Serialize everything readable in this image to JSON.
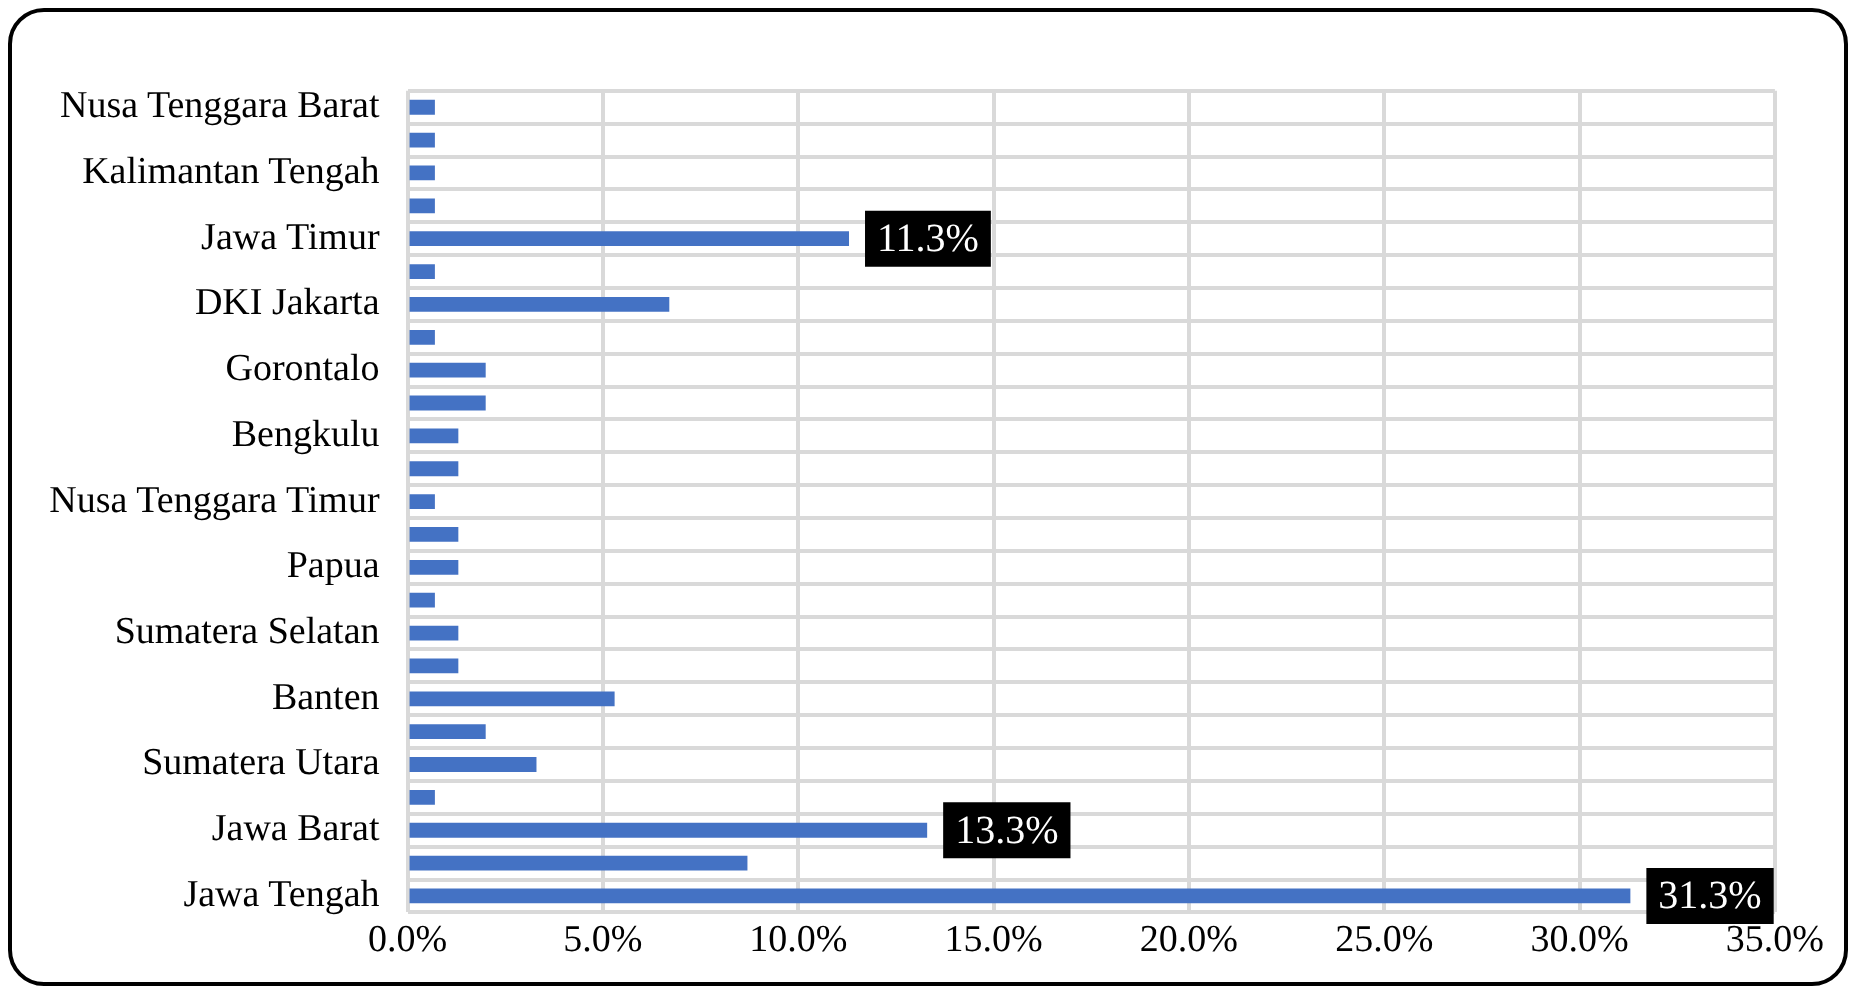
{
  "chart_data": {
    "type": "bar",
    "orientation": "horizontal",
    "categories": [
      "Nusa Tenggara Barat",
      null,
      "Kalimantan Tengah",
      null,
      "Jawa Timur",
      null,
      "DKI Jakarta",
      null,
      "Gorontalo",
      null,
      "Bengkulu",
      null,
      "Nusa Tenggara Timur",
      null,
      "Papua",
      null,
      "Sumatera Selatan",
      null,
      "Banten",
      null,
      "Sumatera Utara",
      null,
      "Jawa Barat",
      null,
      "Jawa Tengah"
    ],
    "values": [
      0.7,
      0.7,
      0.7,
      0.7,
      11.3,
      0.7,
      6.7,
      0.7,
      2.0,
      2.0,
      1.3,
      1.3,
      0.7,
      1.3,
      1.3,
      0.7,
      1.3,
      1.3,
      5.3,
      2.0,
      3.3,
      0.7,
      13.3,
      8.7,
      31.3
    ],
    "value_labels": [
      null,
      null,
      null,
      null,
      "11.3%",
      null,
      null,
      null,
      null,
      null,
      null,
      null,
      null,
      null,
      null,
      null,
      null,
      null,
      null,
      null,
      null,
      null,
      "13.3%",
      null,
      "31.3%"
    ],
    "color": "#4472c4",
    "xlim": [
      0,
      35
    ],
    "xticks": [
      {
        "value": 0,
        "label": "0.0%"
      },
      {
        "value": 5,
        "label": "5.0%"
      },
      {
        "value": 10,
        "label": "10.0%"
      },
      {
        "value": 15,
        "label": "15.0%"
      },
      {
        "value": 20,
        "label": "20.0%"
      },
      {
        "value": 25,
        "label": "25.0%"
      },
      {
        "value": 30,
        "label": "30.0%"
      },
      {
        "value": 35,
        "label": "35.0%"
      }
    ],
    "grid": true,
    "legend": false
  }
}
